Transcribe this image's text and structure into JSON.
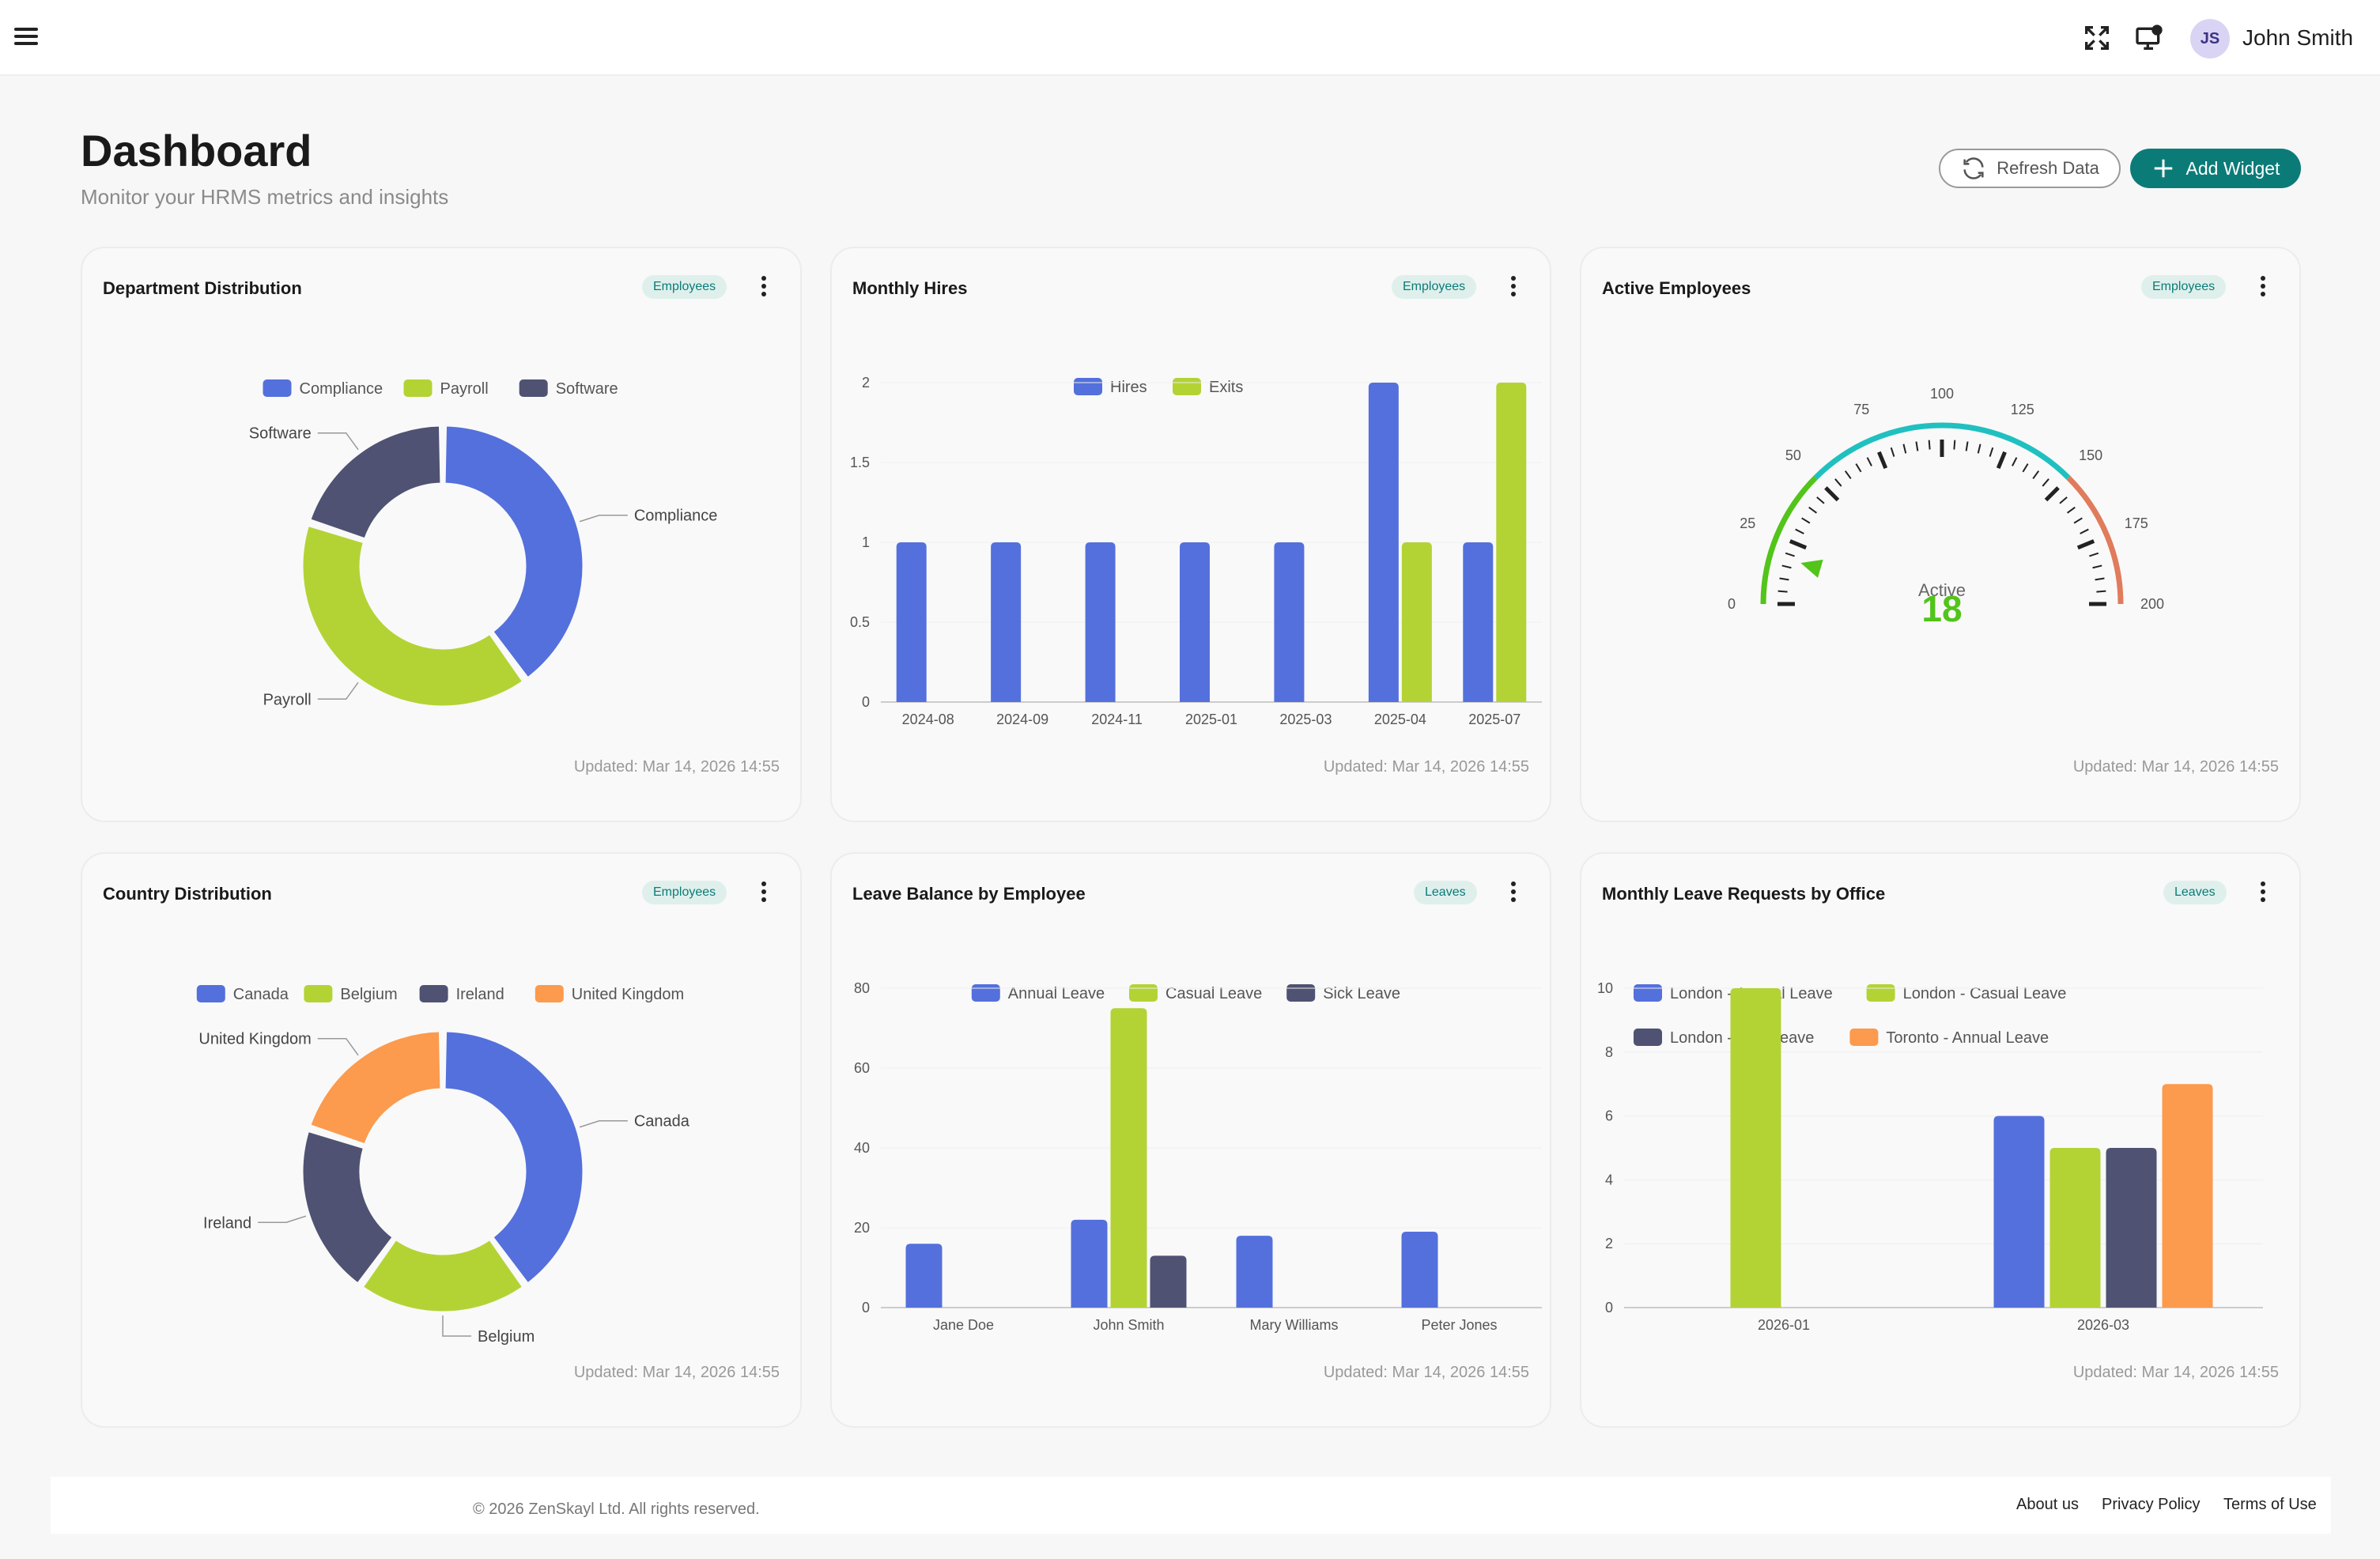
{
  "header": {
    "user_initials": "JS",
    "user_name": "John Smith"
  },
  "page": {
    "title": "Dashboard",
    "subtitle": "Monitor your HRMS metrics and insights"
  },
  "actions": {
    "refresh_label": "Refresh Data",
    "add_label": "Add Widget"
  },
  "widgets": [
    {
      "title": "Department Distribution",
      "badge": "Employees",
      "updated": "Updated: Mar 14, 2026 14:55"
    },
    {
      "title": "Monthly Hires",
      "badge": "Employees",
      "updated": "Updated: Mar 14, 2026 14:55"
    },
    {
      "title": "Active Employees",
      "badge": "Employees",
      "updated": "Updated: Mar 14, 2026 14:55"
    },
    {
      "title": "Country Distribution",
      "badge": "Employees",
      "updated": "Updated: Mar 14, 2026 14:55"
    },
    {
      "title": "Leave Balance by Employee",
      "badge": "Leaves",
      "updated": "Updated: Mar 14, 2026 14:55"
    },
    {
      "title": "Monthly Leave Requests by Office",
      "badge": "Leaves",
      "updated": "Updated: Mar 14, 2026 14:55"
    }
  ],
  "footer": {
    "copyright": "© 2026 ZenSkayl Ltd. All rights reserved.",
    "links": [
      "About us",
      "Privacy Policy",
      "Terms of Use"
    ]
  },
  "colors": {
    "blue": "#5470dc",
    "green": "#b3d335",
    "navy": "#4f5272",
    "orange": "#fc9a4d",
    "teal": "#0b7b78"
  },
  "icons": [
    "hamburger-icon",
    "fullscreen-icon",
    "monitor-icon",
    "refresh-icon",
    "plus-icon",
    "kebab-icon"
  ],
  "chart_data": [
    {
      "type": "pie",
      "labels": [
        "Compliance",
        "Payroll",
        "Software"
      ],
      "values": [
        2,
        2,
        1
      ],
      "colors": [
        "#5470dc",
        "#b3d335",
        "#4f5272"
      ]
    },
    {
      "type": "bar",
      "categories": [
        "2024-08",
        "2024-09",
        "2024-11",
        "2025-01",
        "2025-03",
        "2025-04",
        "2025-07"
      ],
      "series": [
        {
          "name": "Hires",
          "values": [
            1,
            1,
            1,
            1,
            1,
            2,
            1
          ],
          "color": "#5470dc"
        },
        {
          "name": "Exits",
          "values": [
            0,
            0,
            0,
            0,
            0,
            1,
            2
          ],
          "color": "#b3d335"
        }
      ],
      "yticks": [
        "0",
        "0.5",
        "1",
        "1.5",
        "2"
      ],
      "ylim": [
        0,
        2
      ]
    },
    {
      "type": "gauge",
      "label": "Active",
      "value": 18,
      "min": 0,
      "max": 200,
      "ticks": [
        "0",
        "25",
        "50",
        "75",
        "100",
        "125",
        "150",
        "175",
        "200"
      ]
    },
    {
      "type": "pie",
      "labels": [
        "Canada",
        "Belgium",
        "Ireland",
        "United Kingdom"
      ],
      "values": [
        4,
        2,
        2,
        2
      ],
      "colors": [
        "#5470dc",
        "#b3d335",
        "#4f5272",
        "#fc9a4d"
      ]
    },
    {
      "type": "bar",
      "categories": [
        "Jane Doe",
        "John Smith",
        "Mary Williams",
        "Peter Jones"
      ],
      "series": [
        {
          "name": "Annual Leave",
          "values": [
            16,
            22,
            18,
            19
          ],
          "color": "#5470dc"
        },
        {
          "name": "Casual Leave",
          "values": [
            0,
            75,
            0,
            0
          ],
          "color": "#b3d335"
        },
        {
          "name": "Sick Leave",
          "values": [
            0,
            13,
            0,
            0
          ],
          "color": "#4f5272"
        }
      ],
      "yticks": [
        "0",
        "20",
        "40",
        "60",
        "80"
      ],
      "ylim": [
        0,
        80
      ]
    },
    {
      "type": "bar",
      "categories": [
        "2026-01",
        "2026-03"
      ],
      "series": [
        {
          "name": "London - Annual Leave",
          "values": [
            0,
            6
          ],
          "color": "#5470dc"
        },
        {
          "name": "London - Casual Leave",
          "values": [
            10,
            5
          ],
          "color": "#b3d335"
        },
        {
          "name": "London - Sick Leave",
          "values": [
            0,
            5
          ],
          "color": "#4f5272"
        },
        {
          "name": "Toronto - Annual Leave",
          "values": [
            0,
            7
          ],
          "color": "#fc9a4d"
        }
      ],
      "yticks": [
        "0",
        "2",
        "4",
        "6",
        "8",
        "10"
      ],
      "ylim": [
        0,
        10
      ]
    }
  ]
}
